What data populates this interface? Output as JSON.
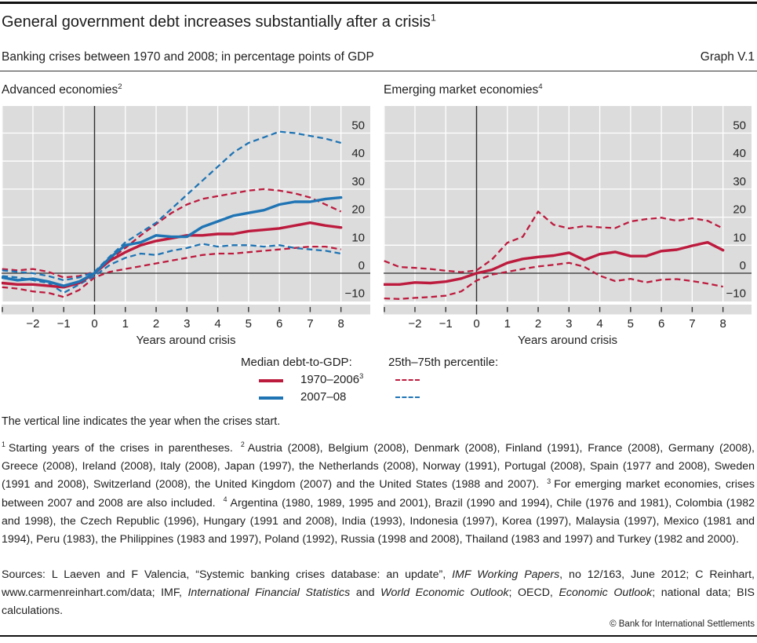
{
  "header": {
    "title": "General government debt increases substantially after a crisis",
    "title_sup": "1",
    "subtitle": "Banking crises between 1970 and 2008; in percentage points of GDP",
    "graph_label": "Graph V.1"
  },
  "colors": {
    "red": "#bd1b3e",
    "blue": "#1f74b4",
    "plot_bg": "#dcdcdc",
    "grid": "#ffffff",
    "axis": "#2e2e2e"
  },
  "legend": {
    "median_header": "Median debt-to-GDP:",
    "percentile_header": "25th–75th percentile:",
    "median_items": [
      {
        "label": "1970–2006",
        "sup": "3",
        "color": "red",
        "style": "solid"
      },
      {
        "label": "2007–08",
        "sup": "",
        "color": "blue",
        "style": "solid"
      }
    ],
    "percentile_items": [
      {
        "color": "red",
        "style": "dashed"
      },
      {
        "color": "blue",
        "style": "dashed"
      }
    ]
  },
  "note": "The vertical line indicates the year when the crises start.",
  "footnotes": [
    {
      "marker": "1",
      "text": "Starting years of the crises in parentheses."
    },
    {
      "marker": "2",
      "text": "Austria (2008), Belgium (2008), Denmark (2008), Finland (1991), France (2008), Germany (2008), Greece (2008), Ireland (2008), Italy (2008), Japan (1997), the Netherlands (2008), Norway (1991), Portugal (2008), Spain (1977 and 2008), Sweden (1991 and 2008), Switzerland (2008), the United Kingdom (2007) and the United States (1988 and 2007)."
    },
    {
      "marker": "3",
      "text": "For emerging market economies, crises between 2007 and 2008 are also included."
    },
    {
      "marker": "4",
      "text": "Argentina (1980, 1989, 1995 and 2001), Brazil (1990 and 1994), Chile (1976 and 1981), Colombia (1982 and 1998), the Czech Republic (1996), Hungary (1991 and 2008), India (1993), Indonesia (1997), Korea (1997), Malaysia (1997), Mexico (1981 and 1994), Peru (1983), the Philippines (1983 and 1997), Poland (1992), Russia (1998 and 2008), Thailand (1983 and 1997) and Turkey (1982 and 2000)."
    }
  ],
  "sources_segments": [
    {
      "t": "Sources: L Laeven and F Valencia, “Systemic banking crises database: an update”, ",
      "i": false
    },
    {
      "t": "IMF Working Papers",
      "i": true
    },
    {
      "t": ", no 12/163, June 2012; C Reinhart, www.carmenreinhart.com/data; IMF, ",
      "i": false
    },
    {
      "t": "International Financial Statistics",
      "i": true
    },
    {
      "t": " and ",
      "i": false
    },
    {
      "t": "World Economic Outlook",
      "i": true
    },
    {
      "t": "; OECD, ",
      "i": false
    },
    {
      "t": "Economic Outlook",
      "i": true
    },
    {
      "t": "; national data; BIS calculations.",
      "i": false
    }
  ],
  "copyright": "© Bank for International Settlements",
  "chart_data": [
    {
      "type": "line",
      "title": "Advanced economies",
      "title_sup": "2",
      "xlabel": "Years around crisis",
      "ylim": [
        -10,
        60
      ],
      "y_ticks": [
        -10,
        0,
        10,
        20,
        30,
        40,
        50
      ],
      "x_ticks": [
        -3,
        -2,
        -1,
        0,
        1,
        2,
        3,
        4,
        5,
        6,
        7,
        8
      ],
      "x_tick_labels": [
        -2,
        -1,
        0,
        1,
        2,
        3,
        4,
        5,
        6,
        7,
        8
      ],
      "x": [
        -3,
        -2.5,
        -2,
        -1.5,
        -1,
        -0.5,
        0,
        0.5,
        1,
        1.5,
        2,
        2.5,
        3,
        3.5,
        4,
        4.5,
        5,
        5.5,
        6,
        6.5,
        7,
        7.5,
        8
      ],
      "series": [
        {
          "name": "25th percentile 1970–2006",
          "color": "red",
          "dash": true,
          "values": [
            -5,
            -5.5,
            -6.5,
            -7,
            -8.5,
            -6,
            -1.5,
            0.5,
            1.5,
            2.5,
            3.5,
            4.5,
            5.5,
            6.5,
            7,
            7,
            7.5,
            8,
            8.5,
            9,
            9.5,
            9.5,
            8.5
          ]
        },
        {
          "name": "75th percentile 1970–2006",
          "color": "red",
          "dash": true,
          "values": [
            1.5,
            1,
            1.5,
            0.5,
            -1.5,
            -1,
            0.5,
            5,
            9,
            13.5,
            17.5,
            21.5,
            24.5,
            26.5,
            27.5,
            28.5,
            29.5,
            30,
            29.5,
            28.5,
            27,
            24.5,
            22
          ]
        },
        {
          "name": "25th percentile 2007–08",
          "color": "blue",
          "dash": true,
          "values": [
            -1,
            -1.5,
            -2.5,
            -3.5,
            -7,
            -4,
            -1,
            3,
            5.5,
            7,
            6.5,
            8,
            9,
            10.5,
            9.5,
            10,
            10,
            9.5,
            10,
            9,
            8.5,
            8,
            7
          ]
        },
        {
          "name": "75th percentile 2007–08",
          "color": "blue",
          "dash": true,
          "values": [
            1,
            0.5,
            0,
            -1,
            -2.5,
            -1.5,
            0.5,
            6,
            11,
            14.5,
            18,
            23,
            28,
            33,
            38,
            43,
            46.5,
            48.5,
            50.5,
            50,
            49,
            48,
            46.5
          ]
        },
        {
          "name": "Median 1970–2006",
          "color": "red",
          "dash": false,
          "values": [
            -3.5,
            -4,
            -4,
            -4.5,
            -5,
            -3.5,
            0,
            4.5,
            7.5,
            10,
            11.5,
            12.5,
            13.5,
            13.5,
            14,
            14,
            15,
            15.5,
            16,
            17,
            18,
            17,
            16.3
          ]
        },
        {
          "name": "Median 2007–08",
          "color": "blue",
          "dash": false,
          "values": [
            -1.5,
            -2.5,
            -2,
            -3,
            -4.5,
            -3,
            0,
            5.5,
            10,
            11,
            13.5,
            13,
            13,
            16.5,
            18.5,
            20.5,
            21.5,
            22.5,
            24.5,
            25.5,
            25.5,
            26.5,
            27
          ]
        }
      ]
    },
    {
      "type": "line",
      "title": "Emerging market economies",
      "title_sup": "4",
      "xlabel": "Years around crisis",
      "ylim": [
        -10,
        60
      ],
      "y_ticks": [
        -10,
        0,
        10,
        20,
        30,
        40,
        50
      ],
      "x_ticks": [
        -3,
        -2,
        -1,
        0,
        1,
        2,
        3,
        4,
        5,
        6,
        7,
        8
      ],
      "x_tick_labels": [
        -2,
        -1,
        0,
        1,
        2,
        3,
        4,
        5,
        6,
        7,
        8
      ],
      "x": [
        -3,
        -2.5,
        -2,
        -1.5,
        -1,
        -0.5,
        0,
        0.5,
        1,
        1.5,
        2,
        2.5,
        3,
        3.5,
        4,
        4.5,
        5,
        5.5,
        6,
        6.5,
        7,
        7.5,
        8
      ],
      "series": [
        {
          "name": "25th percentile 1970–2006",
          "color": "red",
          "dash": true,
          "values": [
            -9,
            -9.2,
            -8.8,
            -8.5,
            -8,
            -6.5,
            -2.6,
            -0.5,
            0.5,
            1.5,
            2.4,
            3,
            3.7,
            2.3,
            -0.9,
            -2.8,
            -2,
            -3.3,
            -2.3,
            -2.1,
            -2.8,
            -3.7,
            -4.8
          ]
        },
        {
          "name": "75th percentile 1970–2006",
          "color": "red",
          "dash": true,
          "values": [
            4.4,
            2.2,
            1.9,
            1.5,
            0.9,
            0.4,
            1,
            4.9,
            10.9,
            13,
            22,
            17.3,
            16,
            16.8,
            16.4,
            16.1,
            18.5,
            19.3,
            19.8,
            18.7,
            19.6,
            18.7,
            16
          ]
        },
        {
          "name": "Median 1970–2006",
          "color": "red",
          "dash": false,
          "values": [
            -4,
            -4,
            -3.3,
            -3.5,
            -3,
            -1.9,
            0,
            1.2,
            3.7,
            5.1,
            5.8,
            6.3,
            7.3,
            4.7,
            6.8,
            7.6,
            6.1,
            6.1,
            7.9,
            8.4,
            9.8,
            11,
            8.2
          ]
        }
      ]
    }
  ]
}
